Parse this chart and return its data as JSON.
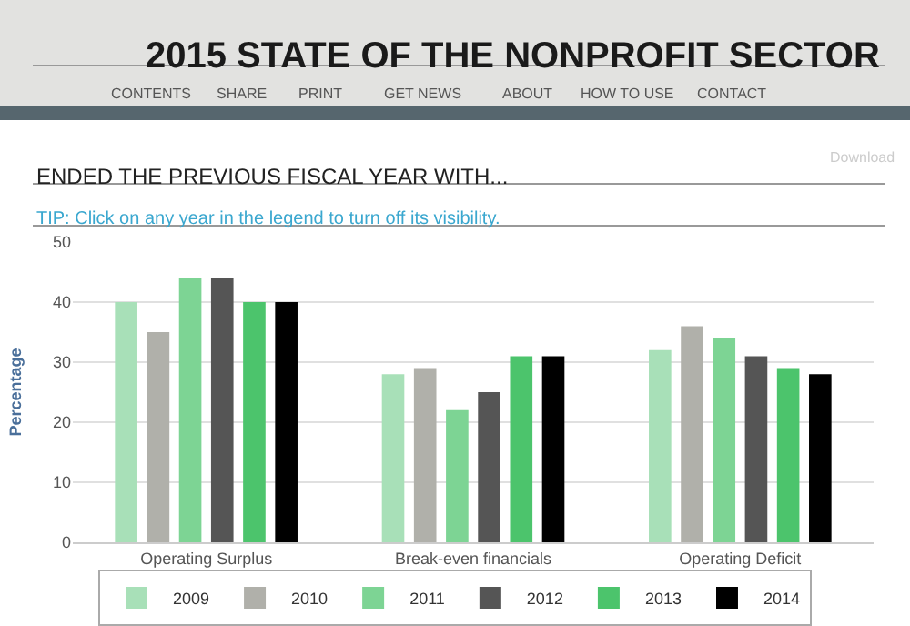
{
  "chart_data": {
    "type": "bar",
    "title": "2015 STATE OF THE NONPROFIT SECTOR",
    "subtitle": "ENDED THE PREVIOUS FISCAL YEAR WITH...",
    "ylabel": "Percentage",
    "categories": [
      "Operating Surplus",
      "Break-even financials",
      "Operating Deficit"
    ],
    "series": [
      {
        "name": "2009",
        "color": "#a8e0b8",
        "values": [
          40,
          28,
          32
        ]
      },
      {
        "name": "2010",
        "color": "#b0b0aa",
        "values": [
          35,
          29,
          36
        ]
      },
      {
        "name": "2011",
        "color": "#7dd494",
        "values": [
          44,
          22,
          34
        ]
      },
      {
        "name": "2012",
        "color": "#555555",
        "values": [
          44,
          25,
          31
        ]
      },
      {
        "name": "2013",
        "color": "#4cc46c",
        "values": [
          40,
          31,
          29
        ]
      },
      {
        "name": "2014",
        "color": "#000000",
        "values": [
          40,
          31,
          28
        ]
      }
    ],
    "ylim": [
      0,
      50
    ],
    "yticks": [
      0,
      10,
      20,
      30,
      40,
      50
    ],
    "grid": "y",
    "legend": "bottom",
    "annotations": [
      "CONTENTS",
      "SHARE",
      "PRINT",
      "GET NEWS",
      "ABOUT",
      "HOW TO USE",
      "CONTACT",
      "Download",
      "TIP: Click on any year in the legend to turn off its visibility."
    ]
  }
}
